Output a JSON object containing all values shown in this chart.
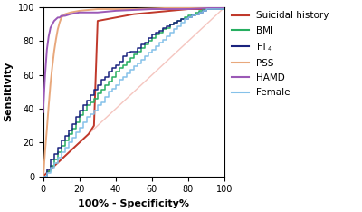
{
  "title": "",
  "xlabel": "100% - Specificity%",
  "ylabel": "Sensitivity",
  "xlim": [
    0,
    100
  ],
  "ylim": [
    0,
    100
  ],
  "xticks": [
    0,
    20,
    40,
    60,
    80,
    100
  ],
  "yticks": [
    0,
    20,
    40,
    60,
    80,
    100
  ],
  "curves": {
    "Suicidal history": {
      "color": "#c0392b",
      "step": false,
      "points": [
        [
          0,
          0
        ],
        [
          2,
          2
        ],
        [
          5,
          5
        ],
        [
          10,
          10
        ],
        [
          15,
          15
        ],
        [
          20,
          20
        ],
        [
          25,
          25
        ],
        [
          28,
          30
        ],
        [
          30,
          92
        ],
        [
          35,
          93
        ],
        [
          40,
          94
        ],
        [
          50,
          96
        ],
        [
          60,
          97
        ],
        [
          70,
          98
        ],
        [
          80,
          99
        ],
        [
          90,
          99
        ],
        [
          100,
          100
        ]
      ]
    },
    "BMI": {
      "color": "#27ae60",
      "step": true,
      "points": [
        [
          0,
          0
        ],
        [
          2,
          3
        ],
        [
          4,
          6
        ],
        [
          6,
          10
        ],
        [
          8,
          14
        ],
        [
          10,
          18
        ],
        [
          12,
          21
        ],
        [
          14,
          25
        ],
        [
          16,
          28
        ],
        [
          18,
          32
        ],
        [
          20,
          36
        ],
        [
          22,
          39
        ],
        [
          24,
          42
        ],
        [
          26,
          44
        ],
        [
          28,
          46
        ],
        [
          30,
          49
        ],
        [
          32,
          51
        ],
        [
          34,
          54
        ],
        [
          36,
          56
        ],
        [
          38,
          59
        ],
        [
          40,
          62
        ],
        [
          42,
          64
        ],
        [
          44,
          66
        ],
        [
          46,
          68
        ],
        [
          48,
          70
        ],
        [
          50,
          72
        ],
        [
          52,
          74
        ],
        [
          54,
          76
        ],
        [
          56,
          78
        ],
        [
          58,
          80
        ],
        [
          60,
          82
        ],
        [
          62,
          84
        ],
        [
          64,
          85
        ],
        [
          66,
          87
        ],
        [
          68,
          88
        ],
        [
          70,
          90
        ],
        [
          72,
          91
        ],
        [
          74,
          92
        ],
        [
          76,
          93
        ],
        [
          78,
          94
        ],
        [
          80,
          95
        ],
        [
          82,
          96
        ],
        [
          84,
          97
        ],
        [
          86,
          98
        ],
        [
          88,
          99
        ],
        [
          100,
          100
        ]
      ]
    },
    "FT4": {
      "color": "#1a237e",
      "step": true,
      "points": [
        [
          0,
          0
        ],
        [
          2,
          4
        ],
        [
          4,
          10
        ],
        [
          6,
          13
        ],
        [
          8,
          17
        ],
        [
          10,
          21
        ],
        [
          12,
          24
        ],
        [
          14,
          27
        ],
        [
          16,
          31
        ],
        [
          18,
          35
        ],
        [
          20,
          39
        ],
        [
          22,
          42
        ],
        [
          24,
          45
        ],
        [
          26,
          48
        ],
        [
          28,
          51
        ],
        [
          30,
          54
        ],
        [
          32,
          57
        ],
        [
          34,
          59
        ],
        [
          36,
          62
        ],
        [
          38,
          64
        ],
        [
          40,
          66
        ],
        [
          42,
          68
        ],
        [
          44,
          71
        ],
        [
          46,
          73
        ],
        [
          48,
          74
        ],
        [
          50,
          74
        ],
        [
          52,
          76
        ],
        [
          54,
          78
        ],
        [
          56,
          79
        ],
        [
          58,
          82
        ],
        [
          60,
          84
        ],
        [
          62,
          85
        ],
        [
          64,
          86
        ],
        [
          66,
          88
        ],
        [
          68,
          89
        ],
        [
          70,
          90
        ],
        [
          72,
          91
        ],
        [
          74,
          92
        ],
        [
          76,
          93
        ],
        [
          78,
          93
        ],
        [
          80,
          94
        ],
        [
          82,
          95
        ],
        [
          84,
          96
        ],
        [
          86,
          97
        ],
        [
          88,
          98
        ],
        [
          90,
          99
        ],
        [
          100,
          100
        ]
      ]
    },
    "PSS": {
      "color": "#e8a87c",
      "step": false,
      "points": [
        [
          0,
          0
        ],
        [
          1,
          15
        ],
        [
          2,
          28
        ],
        [
          3,
          42
        ],
        [
          4,
          55
        ],
        [
          5,
          65
        ],
        [
          6,
          74
        ],
        [
          7,
          81
        ],
        [
          8,
          87
        ],
        [
          9,
          91
        ],
        [
          10,
          94
        ],
        [
          12,
          96
        ],
        [
          15,
          97
        ],
        [
          20,
          98
        ],
        [
          30,
          99
        ],
        [
          50,
          99
        ],
        [
          80,
          100
        ],
        [
          100,
          100
        ]
      ]
    },
    "HAMD": {
      "color": "#9b59b6",
      "step": false,
      "points": [
        [
          0,
          38
        ],
        [
          0,
          40
        ],
        [
          1,
          60
        ],
        [
          2,
          75
        ],
        [
          3,
          83
        ],
        [
          4,
          88
        ],
        [
          5,
          90
        ],
        [
          6,
          92
        ],
        [
          7,
          93
        ],
        [
          8,
          94
        ],
        [
          9,
          94
        ],
        [
          10,
          95
        ],
        [
          12,
          95
        ],
        [
          15,
          96
        ],
        [
          20,
          97
        ],
        [
          30,
          97
        ],
        [
          40,
          98
        ],
        [
          60,
          99
        ],
        [
          80,
          99
        ],
        [
          100,
          100
        ]
      ]
    },
    "Female": {
      "color": "#85c1e9",
      "step": true,
      "points": [
        [
          0,
          0
        ],
        [
          2,
          2
        ],
        [
          4,
          5
        ],
        [
          6,
          8
        ],
        [
          8,
          11
        ],
        [
          10,
          14
        ],
        [
          12,
          17
        ],
        [
          14,
          20
        ],
        [
          16,
          23
        ],
        [
          18,
          26
        ],
        [
          20,
          29
        ],
        [
          22,
          32
        ],
        [
          24,
          35
        ],
        [
          26,
          37
        ],
        [
          28,
          39
        ],
        [
          30,
          42
        ],
        [
          32,
          44
        ],
        [
          34,
          47
        ],
        [
          36,
          50
        ],
        [
          38,
          52
        ],
        [
          40,
          54
        ],
        [
          42,
          57
        ],
        [
          44,
          59
        ],
        [
          46,
          61
        ],
        [
          48,
          63
        ],
        [
          50,
          65
        ],
        [
          52,
          67
        ],
        [
          54,
          69
        ],
        [
          56,
          71
        ],
        [
          58,
          73
        ],
        [
          60,
          75
        ],
        [
          62,
          77
        ],
        [
          64,
          79
        ],
        [
          66,
          81
        ],
        [
          68,
          83
        ],
        [
          70,
          85
        ],
        [
          72,
          87
        ],
        [
          74,
          89
        ],
        [
          76,
          91
        ],
        [
          78,
          93
        ],
        [
          80,
          94
        ],
        [
          82,
          95
        ],
        [
          84,
          96
        ],
        [
          86,
          97
        ],
        [
          88,
          98
        ],
        [
          90,
          99
        ],
        [
          100,
          100
        ]
      ]
    }
  },
  "reference_line_color": "#f5c6c0",
  "figsize": [
    4.0,
    2.34
  ],
  "dpi": 100,
  "legend_fontsize": 7.5,
  "axis_label_fontsize": 8,
  "tick_fontsize": 7
}
